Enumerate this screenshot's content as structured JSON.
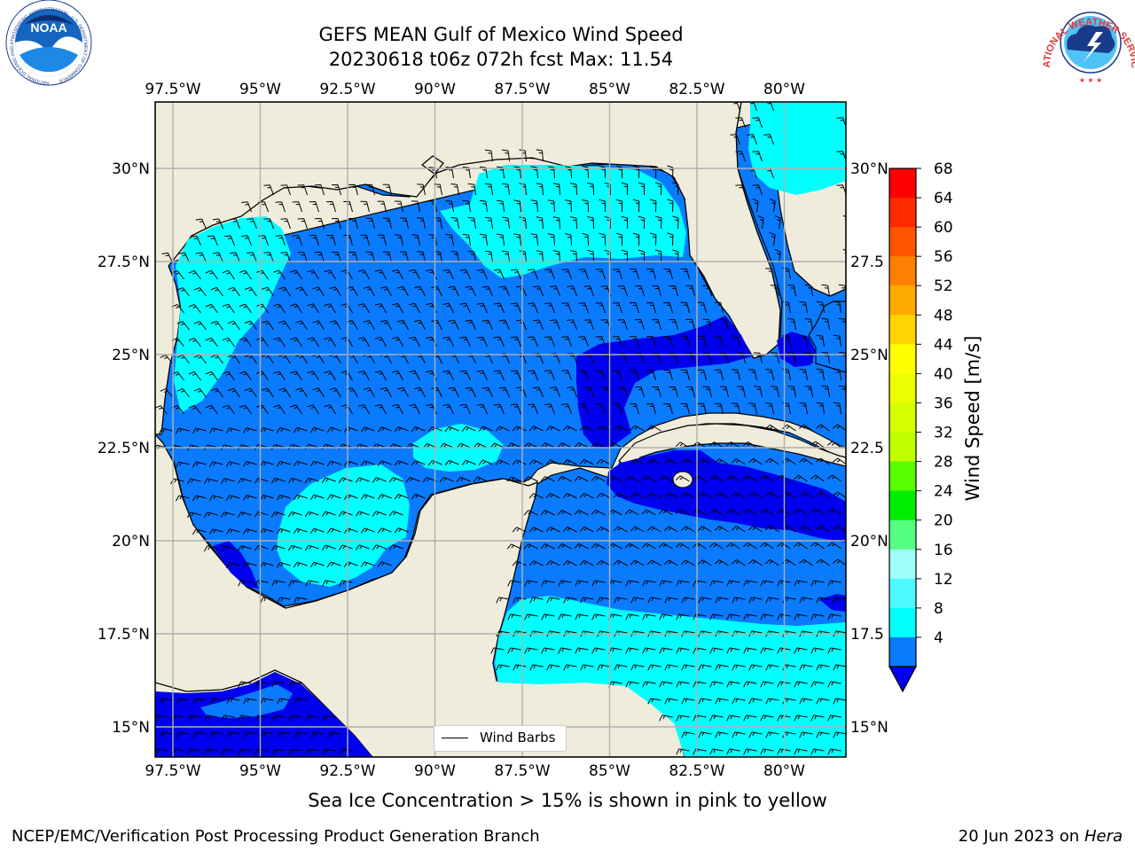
{
  "header": {
    "title_line1": "GEFS MEAN Gulf of Mexico Wind Speed",
    "title_line2": "20230618 t06z 072h fcst   Max: 11.54"
  },
  "logos": {
    "noaa_text": "NOAA",
    "noaa_ring_text": "NATIONAL OCEANIC AND ATMOSPHERIC ADMINISTRATION · U.S. DEPARTMENT OF COMMERCE",
    "nws_ring_text": "NATIONAL WEATHER SERVICE"
  },
  "map": {
    "lon_labels": [
      "97.5°W",
      "95°W",
      "92.5°W",
      "90°W",
      "87.5°W",
      "85°W",
      "82.5°W",
      "80°W"
    ],
    "lat_labels": [
      "30°N",
      "27.5°N",
      "25°N",
      "22.5°N",
      "20°N",
      "17.5°N",
      "15°N"
    ],
    "lat_labels_right": [
      "30°N",
      "27.5",
      "25°N",
      "22.5",
      "20°N",
      "17.5",
      "15°N"
    ],
    "legend_label": "Wind Barbs",
    "colors": {
      "land": "#efecdc",
      "level_4_8": "#0a7bff",
      "level_8_12": "#00ffff",
      "below_4": "#0000ee",
      "grid": "#b0b0b0"
    }
  },
  "colorbar": {
    "label": "Wind Speed [m/s]",
    "ticks": [
      "68",
      "64",
      "60",
      "56",
      "52",
      "48",
      "44",
      "40",
      "36",
      "32",
      "28",
      "24",
      "20",
      "16",
      "12",
      "8",
      "4"
    ],
    "colors": [
      "#ff0000",
      "#ff2a00",
      "#ff5500",
      "#ff8000",
      "#ffaa00",
      "#ffd400",
      "#ffff00",
      "#eaff00",
      "#d5ff00",
      "#bfff00",
      "#55ff00",
      "#00ee00",
      "#55ff80",
      "#9ffffb",
      "#4ffaff",
      "#00ffff",
      "#0a7bff"
    ],
    "under_color": "#0000ee"
  },
  "footer": {
    "sea_ice_note": "Sea Ice Concentration > 15% is shown in pink to yellow",
    "credit": "NCEP/EMC/Verification Post Processing Product Generation Branch",
    "run_date": "20 Jun 2023 on",
    "host": "Hera"
  }
}
